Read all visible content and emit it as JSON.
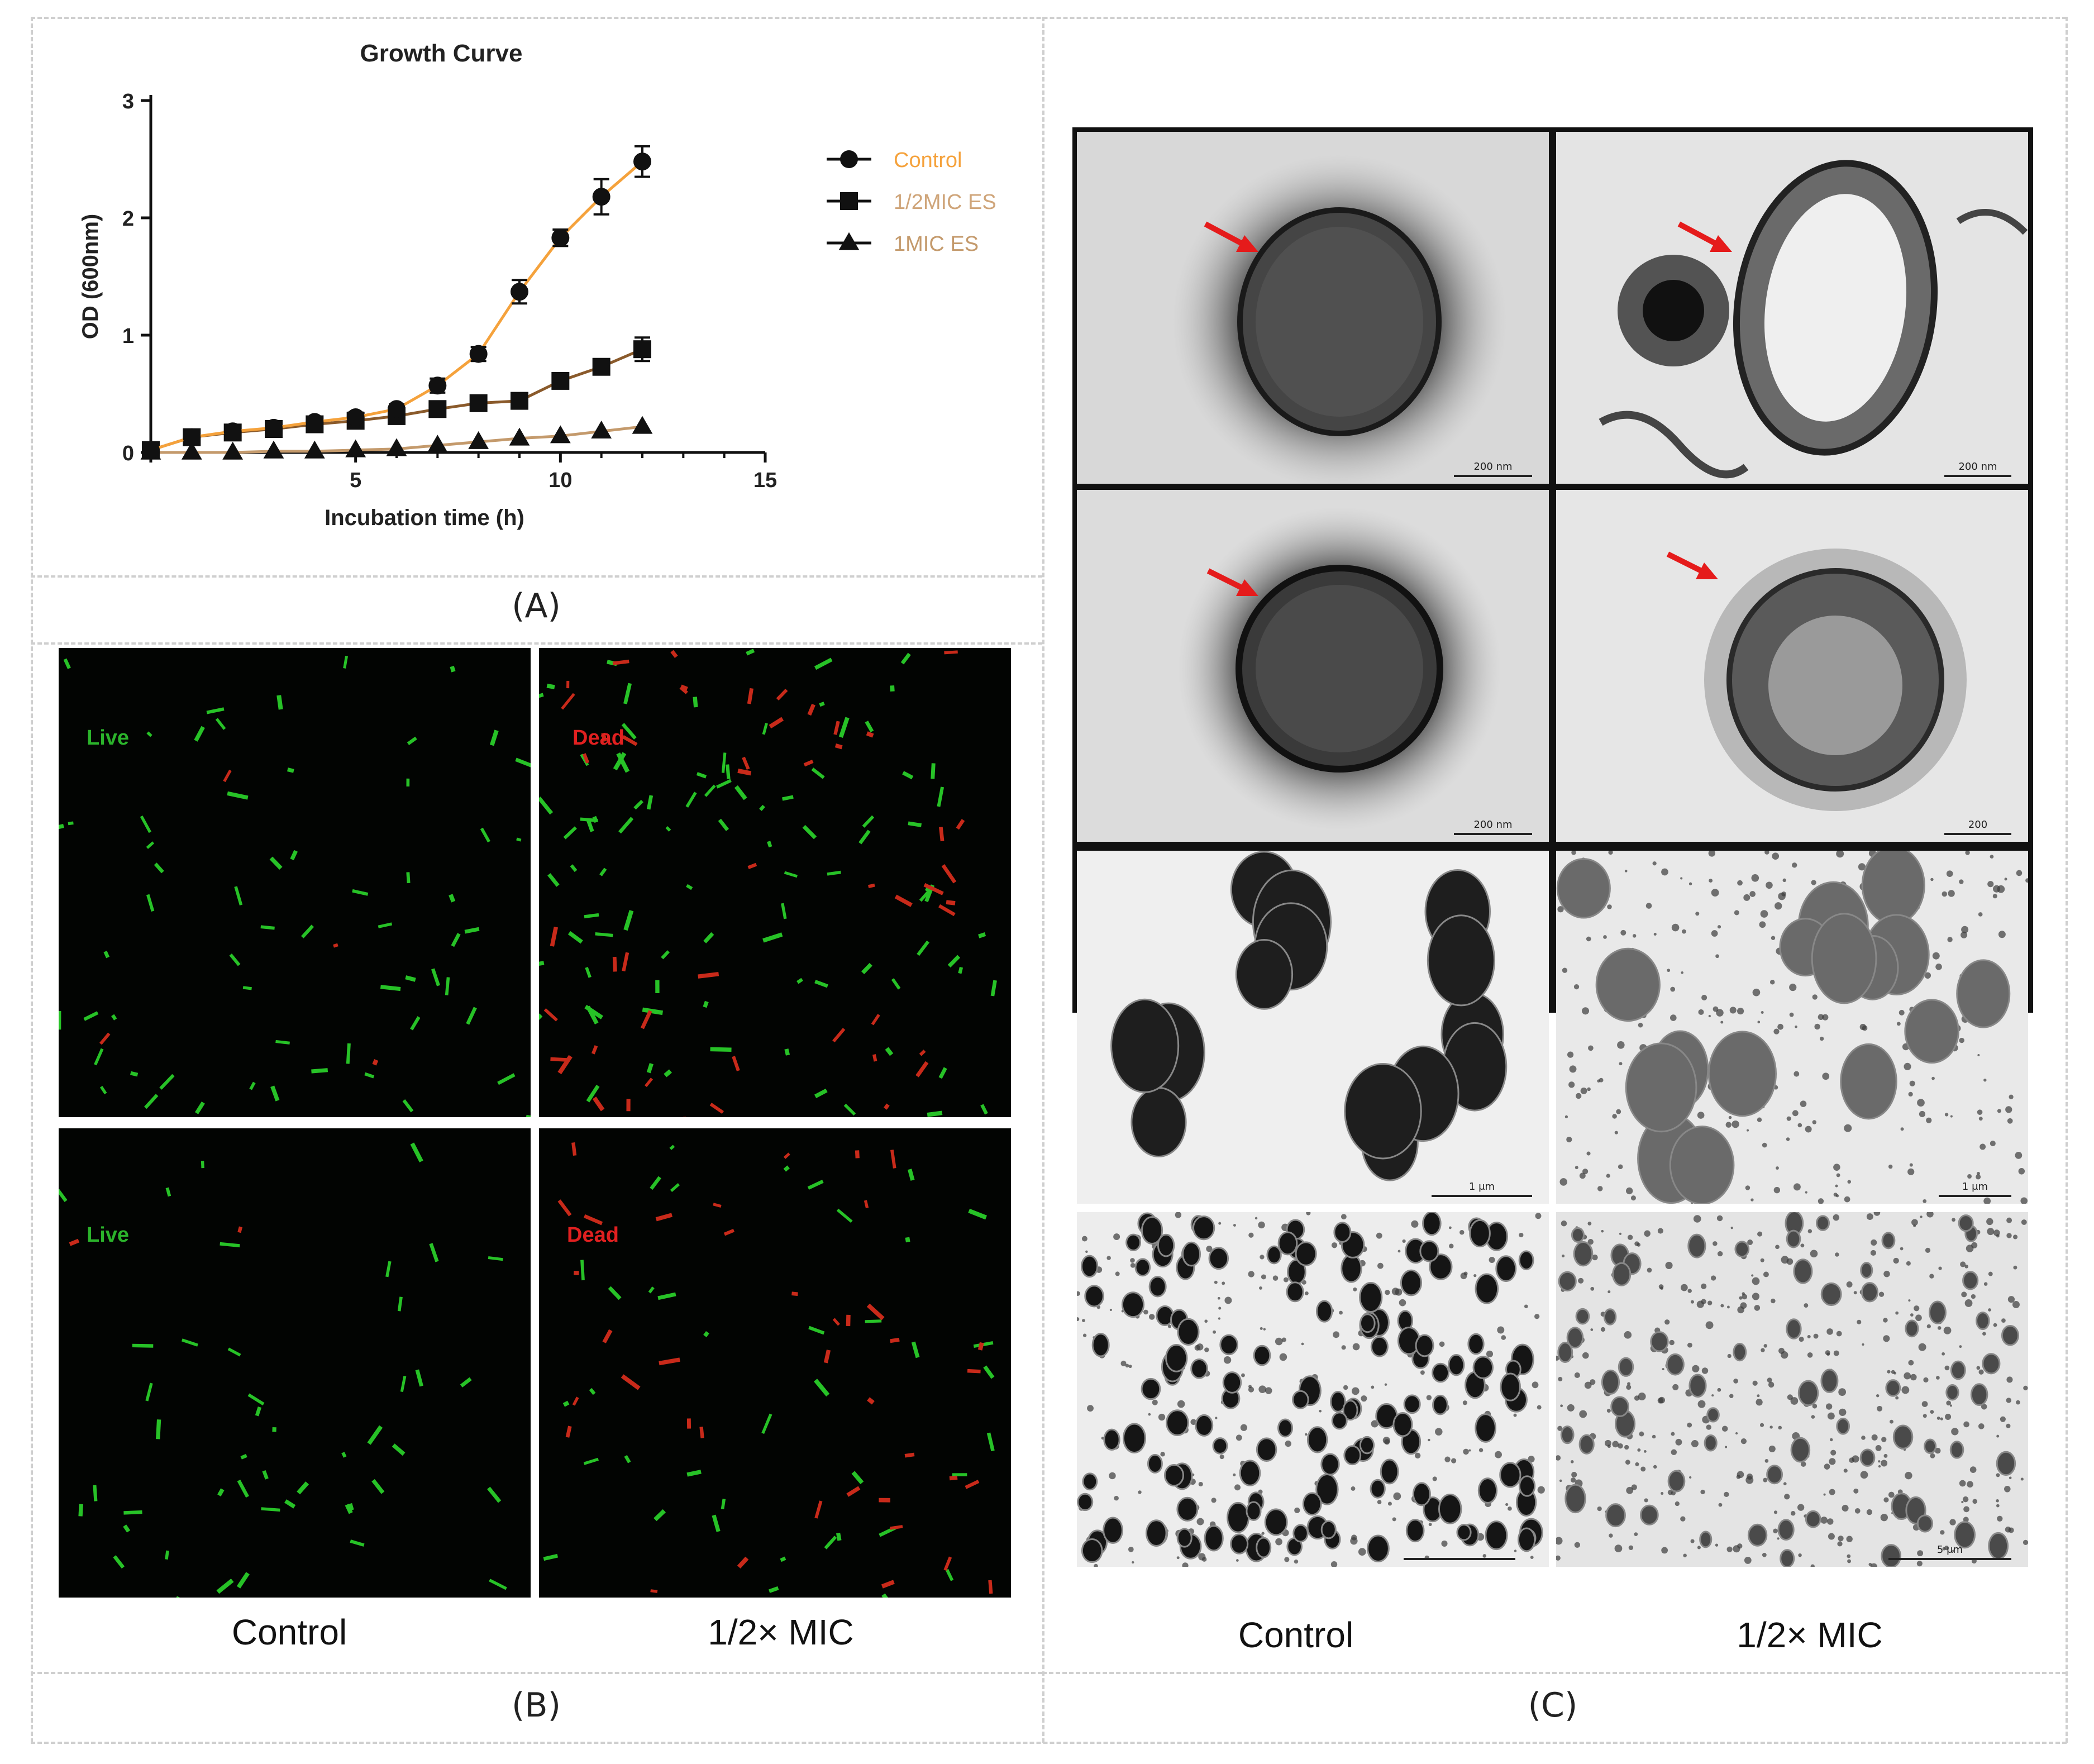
{
  "panels": {
    "a": {
      "label": "(A)"
    },
    "b": {
      "label": "(B)"
    },
    "c": {
      "label": "(C)"
    }
  },
  "chart_data": {
    "type": "line",
    "title": "Growth Curve",
    "xlabel": "Incubation time (h)",
    "ylabel": "OD (600nm)",
    "xlim": [
      0,
      15
    ],
    "ylim": [
      0,
      3
    ],
    "xticks": [
      0,
      5,
      10,
      15
    ],
    "yticks": [
      0,
      1,
      2,
      3
    ],
    "x_tick_labels": [
      "",
      "5",
      "10",
      "15"
    ],
    "y_tick_labels": [
      "0",
      "1",
      "2",
      "3"
    ],
    "grid": false,
    "legend_position": "right",
    "x": [
      0,
      1,
      2,
      3,
      4,
      5,
      6,
      7,
      8,
      9,
      10,
      11,
      12
    ],
    "series": [
      {
        "name": "Control",
        "marker": "circle",
        "line_color": "#f5a23c",
        "marker_color": "#111111",
        "legend_text_color": "#f5a23c",
        "values": [
          0.02,
          0.13,
          0.18,
          0.21,
          0.26,
          0.3,
          0.37,
          0.57,
          0.84,
          1.37,
          1.83,
          2.18,
          2.48
        ],
        "errors": [
          0.02,
          0.03,
          0.03,
          0.03,
          0.03,
          0.04,
          0.04,
          0.06,
          0.06,
          0.1,
          0.07,
          0.15,
          0.13
        ]
      },
      {
        "name": "1/2MIC ES",
        "marker": "square",
        "line_color": "#8a5a2b",
        "marker_color": "#111111",
        "legend_text_color": "#cfa57a",
        "values": [
          0.02,
          0.13,
          0.17,
          0.2,
          0.24,
          0.27,
          0.31,
          0.37,
          0.42,
          0.44,
          0.61,
          0.73,
          0.88
        ],
        "errors": [
          0.02,
          0.02,
          0.02,
          0.02,
          0.02,
          0.02,
          0.03,
          0.03,
          0.03,
          0.03,
          0.04,
          0.05,
          0.1
        ]
      },
      {
        "name": "1MIC ES",
        "marker": "triangle",
        "line_color": "#c49a6c",
        "marker_color": "#111111",
        "legend_text_color": "#c49a6c",
        "values": [
          0.0,
          0.0,
          0.0,
          0.01,
          0.01,
          0.02,
          0.03,
          0.06,
          0.09,
          0.12,
          0.14,
          0.18,
          0.22
        ],
        "errors": [
          0.01,
          0.01,
          0.01,
          0.01,
          0.01,
          0.01,
          0.01,
          0.01,
          0.01,
          0.01,
          0.02,
          0.02,
          0.02
        ]
      }
    ]
  },
  "fluorescence": {
    "images": [
      {
        "label": "Live",
        "label_color": "#2bb32b"
      },
      {
        "label": "Dead",
        "label_color": "#e02020"
      },
      {
        "label": "Live",
        "label_color": "#2bb32b"
      },
      {
        "label": "Dead",
        "label_color": "#e02020"
      }
    ],
    "col_labels": [
      "Control",
      "1/2× MIC"
    ]
  },
  "tem": {
    "scale_labels": [
      "200 nm",
      "200 nm",
      "200 nm",
      "200",
      "1 μm",
      "1 μm",
      "",
      "5 μm"
    ],
    "col_labels": [
      "Control",
      "1/2× MIC"
    ],
    "arrow_color": "#e51b1b"
  }
}
